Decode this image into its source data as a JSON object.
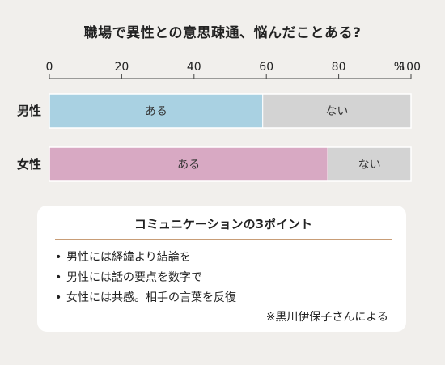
{
  "title": "職場で異性との意思疎通、悩んだことある?",
  "chart_data": {
    "type": "bar",
    "orientation": "horizontal",
    "stacked": true,
    "axis_ticks": [
      "0",
      "20",
      "40",
      "60",
      "80",
      "100"
    ],
    "axis_unit": "%",
    "xlim": [
      0,
      100
    ],
    "categories": [
      "男性",
      "女性"
    ],
    "series": [
      {
        "name": "ある",
        "values": [
          59,
          77
        ],
        "color": "#a9d1e2"
      },
      {
        "name": "ない",
        "values": [
          41,
          23
        ],
        "color": "#d3d3d3"
      }
    ],
    "female_yes_color": "#d8a9c3"
  },
  "note": {
    "heading": "コミュニケーションの3ポイント",
    "items": [
      "男性には経緯より結論を",
      "男性には話の要点を数字で",
      "女性には共感。相手の言葉を反復"
    ],
    "bullet": "•",
    "source": "※黒川伊保子さんによる"
  }
}
